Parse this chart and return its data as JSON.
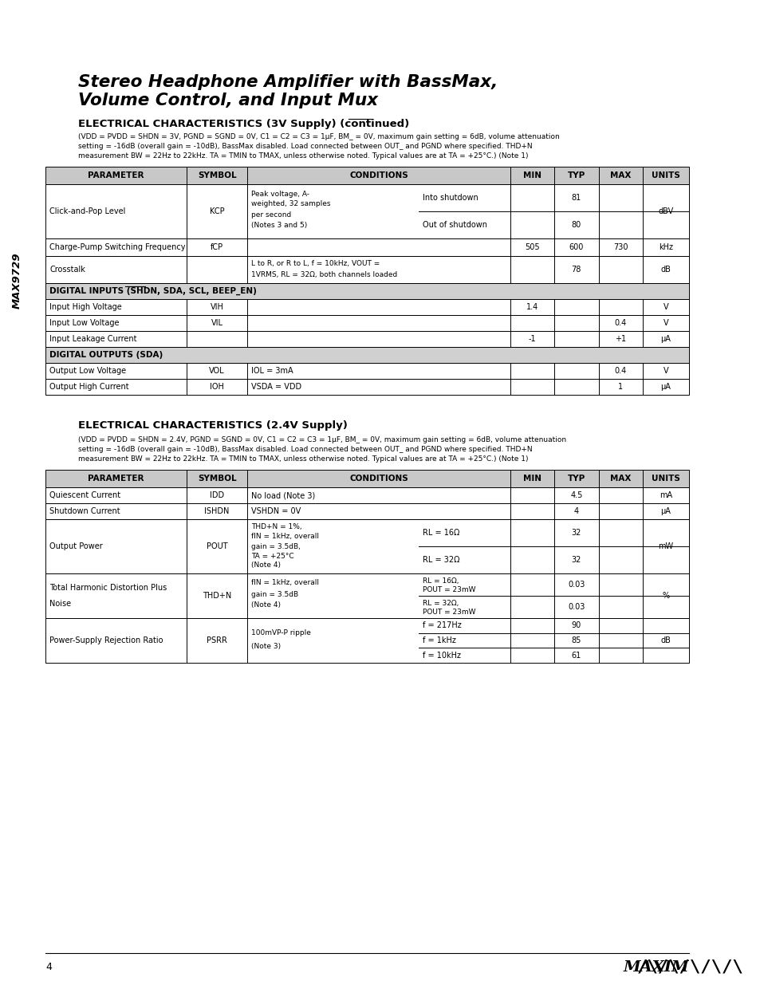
{
  "title_line1": "Stereo Headphone Amplifier with BassMax,",
  "title_line2": "Volume Control, and Input Mux",
  "sec1_head": "ELECTRICAL CHARACTERISTICS (3V Supply) (continued)",
  "sec1_note1": "(VDD = PVDD = SHDN = 3V, PGND = SGND = 0V, C1 = C2 = C3 = 1μF, BM_ = 0V, maximum gain setting = 6dB, volume attenuation",
  "sec1_note2": "setting = -16dB (overall gain = -10dB), BassMax disabled. Load connected between OUT_ and PGND where specified. THD+N",
  "sec1_note3": "measurement BW = 22Hz to 22kHz. TA = TMIN to TMAX, unless otherwise noted. Typical values are at TA = +25°C.) (Note 1)",
  "sec2_head": "ELECTRICAL CHARACTERISTICS (2.4V Supply)",
  "sec2_note1": "(VDD = PVDD = SHDN = 2.4V, PGND = SGND = 0V, C1 = C2 = C3 = 1μF, BM_ = 0V, maximum gain setting = 6dB, volume attenuation",
  "sec2_note2": "setting = -16dB (overall gain = -10dB), BassMax disabled. Load connected between OUT_ and PGND where specified. THD+N",
  "sec2_note3": "measurement BW = 22Hz to 22kHz. TA = TMIN to TMAX, unless otherwise noted. Typical values are at TA = +25°C.) (Note 1)",
  "page_num": "4",
  "max9729_label": "MAX9729",
  "bg_color": "#ffffff"
}
